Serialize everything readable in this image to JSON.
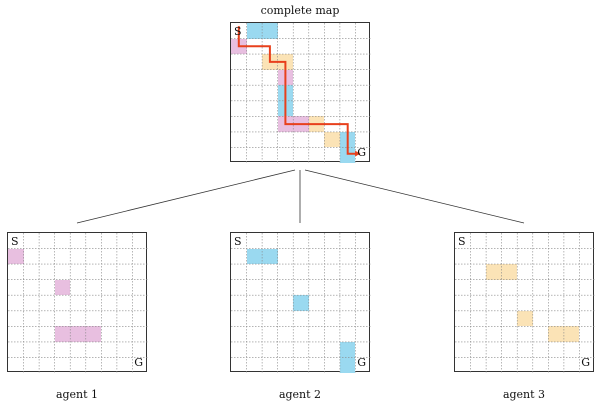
{
  "title": "complete map",
  "start_label": "S",
  "goal_label": "G",
  "agents": [
    {
      "label": "agent 1",
      "color": "#e8bfe0"
    },
    {
      "label": "agent 2",
      "color": "#9ad9f0"
    },
    {
      "label": "agent 3",
      "color": "#fbe3b6"
    }
  ],
  "path_color": "#e8401c",
  "grid_size": 9
}
